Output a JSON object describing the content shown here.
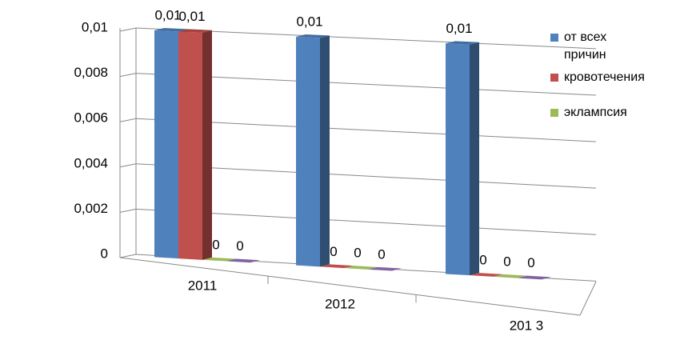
{
  "chart_data": {
    "type": "bar3d",
    "categories": [
      "2011",
      "2012",
      "201 3"
    ],
    "series": [
      {
        "name": "от всех причин",
        "color": "#4f81bd",
        "values": [
          0.01,
          0.01,
          0.01
        ],
        "value_labels": [
          "0,01",
          "0,01",
          "0,01"
        ]
      },
      {
        "name": "кровотечения",
        "color": "#c0504d",
        "values": [
          0.01,
          0,
          0
        ],
        "value_labels": [
          "0,01",
          "0",
          "0"
        ]
      },
      {
        "name": "эклампсия",
        "color": "#9bbb59",
        "values": [
          0,
          0,
          0
        ],
        "value_labels": [
          "0",
          "0",
          "0"
        ]
      },
      {
        "color": "#8064a2",
        "values": [
          0,
          0,
          0
        ],
        "value_labels": [
          "0",
          "0",
          "0"
        ]
      }
    ],
    "ylim": [
      0,
      0.01
    ],
    "yticks": [
      0,
      {
        "value": 0.002,
        "label": "0,002"
      },
      {
        "value": 0.004,
        "label": "0,004"
      },
      {
        "value": 0.006,
        "label": "0,006"
      },
      {
        "value": 0.008,
        "label": "0,008"
      },
      {
        "value": 0.01,
        "label": "0,01"
      }
    ],
    "grid": true,
    "legend": "right"
  }
}
